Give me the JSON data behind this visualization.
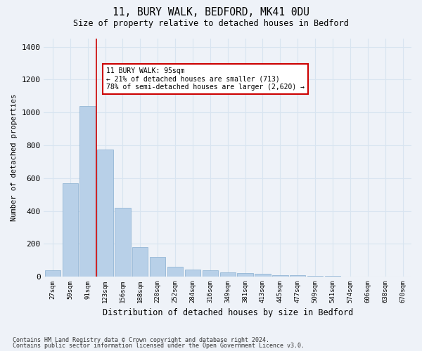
{
  "title1": "11, BURY WALK, BEDFORD, MK41 0DU",
  "title2": "Size of property relative to detached houses in Bedford",
  "xlabel": "Distribution of detached houses by size in Bedford",
  "ylabel": "Number of detached properties",
  "categories": [
    "27sqm",
    "59sqm",
    "91sqm",
    "123sqm",
    "156sqm",
    "188sqm",
    "220sqm",
    "252sqm",
    "284sqm",
    "316sqm",
    "349sqm",
    "381sqm",
    "413sqm",
    "445sqm",
    "477sqm",
    "509sqm",
    "541sqm",
    "574sqm",
    "606sqm",
    "638sqm",
    "670sqm"
  ],
  "values": [
    40,
    570,
    1040,
    775,
    420,
    180,
    120,
    60,
    45,
    40,
    25,
    20,
    18,
    10,
    8,
    5,
    3,
    0,
    0,
    0,
    0
  ],
  "bar_color": "#b8d0e8",
  "bar_edge_color": "#88afd0",
  "grid_color": "#d8e4f0",
  "bg_color": "#eef2f8",
  "vline_color": "#cc0000",
  "annotation_text": "11 BURY WALK: 95sqm\n← 21% of detached houses are smaller (713)\n78% of semi-detached houses are larger (2,620) →",
  "annotation_box_color": "#ffffff",
  "annotation_box_edge": "#cc0000",
  "footer1": "Contains HM Land Registry data © Crown copyright and database right 2024.",
  "footer2": "Contains public sector information licensed under the Open Government Licence v3.0.",
  "ylim": [
    0,
    1450
  ],
  "yticks": [
    0,
    200,
    400,
    600,
    800,
    1000,
    1200,
    1400
  ]
}
